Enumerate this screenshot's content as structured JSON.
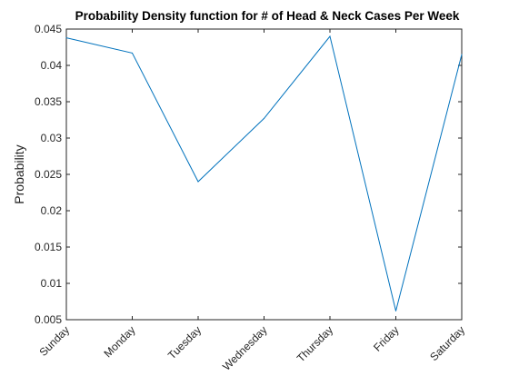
{
  "chart_data": {
    "type": "line",
    "title": "Probability Density function for # of Head & Neck Cases Per Week",
    "xlabel": "",
    "ylabel": "Probability",
    "categories": [
      "Sunday",
      "Monday",
      "Tuesday",
      "Wednesday",
      "Thursday",
      "Friday",
      "Saturday"
    ],
    "series": [
      {
        "values": [
          0.0438,
          0.0417,
          0.024,
          0.0327,
          0.044,
          0.0062,
          0.0415
        ]
      }
    ],
    "ylim": [
      0.005,
      0.045
    ],
    "yticks": [
      0.005,
      0.01,
      0.015,
      0.02,
      0.025,
      0.03,
      0.035,
      0.04,
      0.045
    ],
    "ytick_labels": [
      "0.005",
      "0.01",
      "0.015",
      "0.02",
      "0.025",
      "0.03",
      "0.035",
      "0.04",
      "0.045"
    ],
    "grid": false,
    "line_color": "#0072BD",
    "axis_color": "#262626"
  }
}
